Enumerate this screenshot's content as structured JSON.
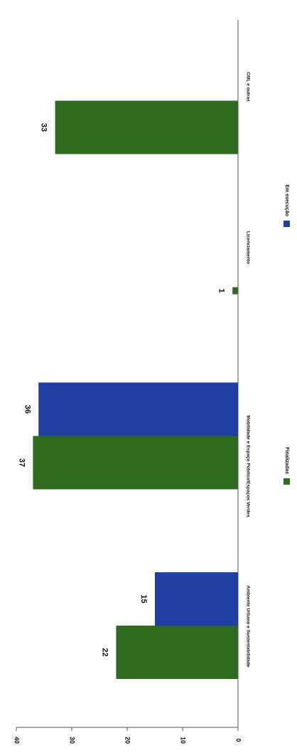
{
  "chart_data": {
    "type": "bar",
    "orientation": "rotated-90",
    "categories": [
      "Ambiente Urbano e Sustentabilidade",
      "Mobilidade e Espaço Público/Espaços Verdes",
      "Licenciamento",
      "CML e outras"
    ],
    "series": [
      {
        "name": "Finalizadas",
        "color": "#2e6b1f",
        "values": [
          22,
          37,
          1,
          33
        ]
      },
      {
        "name": "Em execução",
        "color": "#1f3fa3",
        "values": [
          15,
          36,
          null,
          null
        ]
      }
    ],
    "ylim": [
      0,
      40
    ],
    "yticks": [
      "0",
      "10",
      "20",
      "30",
      "40"
    ],
    "grid": false,
    "legend_position": "bottom"
  }
}
